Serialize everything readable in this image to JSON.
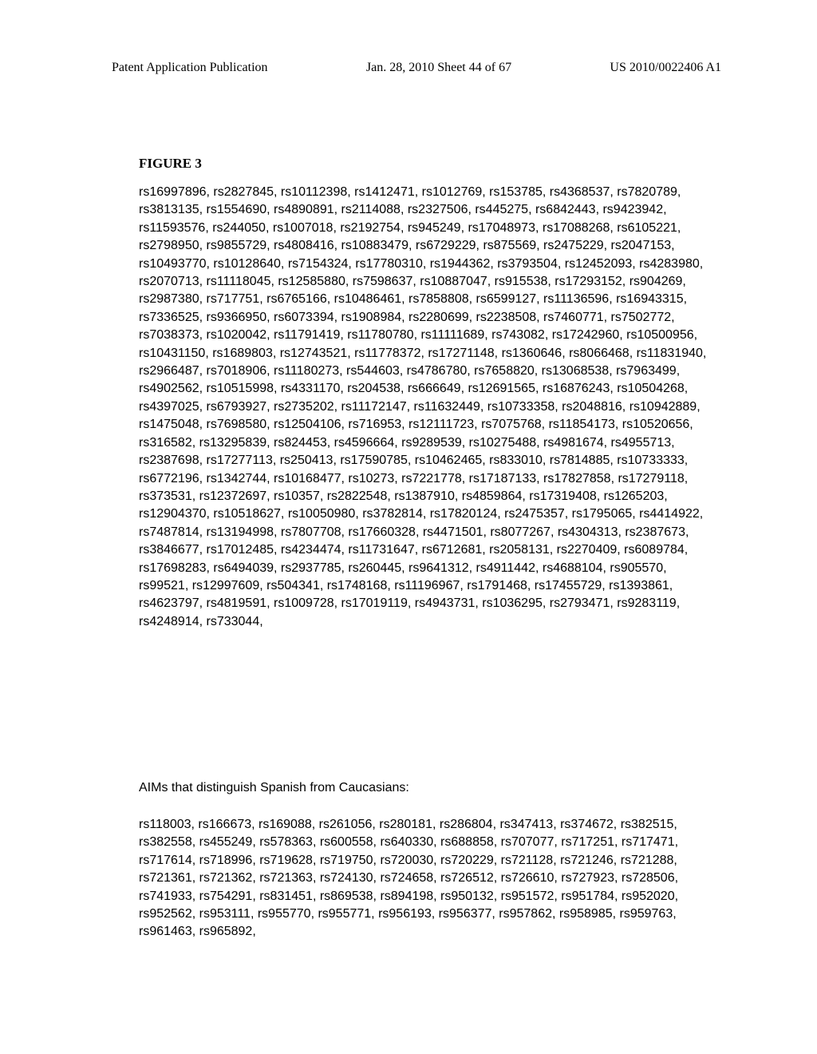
{
  "header": {
    "left": "Patent Application Publication",
    "center": "Jan. 28, 2010  Sheet 44 of 67",
    "right": "US 2010/0022406 A1"
  },
  "figure_title": "FIGURE 3",
  "block1": "rs16997896, rs2827845, rs10112398, rs1412471, rs1012769, rs153785, rs4368537, rs7820789, rs3813135, rs1554690, rs4890891, rs2114088, rs2327506, rs445275, rs6842443, rs9423942, rs11593576, rs244050, rs1007018, rs2192754, rs945249, rs17048973, rs17088268, rs6105221, rs2798950, rs9855729, rs4808416, rs10883479, rs6729229, rs875569, rs2475229, rs2047153, rs10493770, rs10128640, rs7154324, rs17780310, rs1944362, rs3793504, rs12452093, rs4283980, rs2070713, rs11118045, rs12585880, rs7598637, rs10887047, rs915538, rs17293152, rs904269, rs2987380, rs717751, rs6765166, rs10486461, rs7858808, rs6599127, rs11136596, rs16943315, rs7336525, rs9366950, rs6073394, rs1908984, rs2280699, rs2238508, rs7460771, rs7502772, rs7038373, rs1020042, rs11791419, rs11780780, rs11111689, rs743082, rs17242960, rs10500956, rs10431150, rs1689803, rs12743521, rs11778372, rs17271148, rs1360646, rs8066468, rs11831940, rs2966487, rs7018906, rs11180273, rs544603, rs4786780, rs7658820, rs13068538, rs7963499, rs4902562, rs10515998, rs4331170, rs204538, rs666649, rs12691565, rs16876243, rs10504268, rs4397025, rs6793927, rs2735202, rs11172147, rs11632449, rs10733358, rs2048816, rs10942889, rs1475048, rs7698580, rs12504106, rs716953, rs12111723, rs7075768, rs11854173, rs10520656, rs316582, rs13295839, rs824453, rs4596664, rs9289539, rs10275488, rs4981674, rs4955713, rs2387698, rs17277113, rs250413, rs17590785, rs10462465, rs833010, rs7814885, rs10733333, rs6772196, rs1342744, rs10168477, rs10273, rs7221778, rs17187133, rs17827858, rs17279118, rs373531, rs12372697, rs10357, rs2822548, rs1387910, rs4859864, rs17319408, rs1265203, rs12904370, rs10518627, rs10050980, rs3782814, rs17820124, rs2475357, rs1795065, rs4414922, rs7487814, rs13194998, rs7807708, rs17660328, rs4471501, rs8077267, rs4304313, rs2387673, rs3846677, rs17012485, rs4234474, rs11731647, rs6712681, rs2058131, rs2270409, rs6089784, rs17698283, rs6494039, rs2937785, rs260445, rs9641312, rs4911442, rs4688104, rs905570, rs99521, rs12997609, rs504341, rs1748168, rs11196967, rs1791468, rs17455729, rs1393861, rs4623797, rs4819591, rs1009728, rs17019119, rs4943731, rs1036295, rs2793471, rs9283119, rs4248914, rs733044,",
  "subtitle": "AIMs that distinguish Spanish from Caucasians:",
  "block2": "rs118003, rs166673, rs169088, rs261056, rs280181, rs286804, rs347413, rs374672, rs382515, rs382558, rs455249, rs578363, rs600558, rs640330, rs688858, rs707077, rs717251, rs717471, rs717614, rs718996, rs719628, rs719750, rs720030, rs720229, rs721128, rs721246, rs721288, rs721361, rs721362, rs721363, rs724130, rs724658, rs726512, rs726610, rs727923, rs728506, rs741933, rs754291, rs831451, rs869538, rs894198, rs950132, rs951572, rs951784, rs952020, rs952562, rs953111, rs955770, rs955771, rs956193, rs956377, rs957862, rs958985, rs959763, rs961463, rs965892,"
}
